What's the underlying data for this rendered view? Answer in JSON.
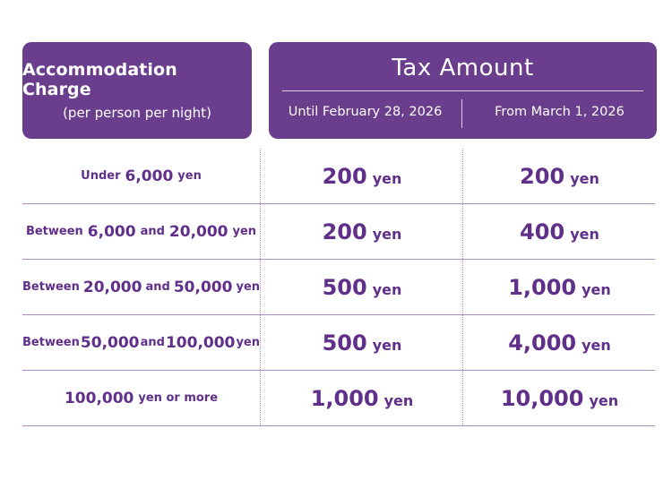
{
  "header": {
    "left_title": "Accommodation Charge",
    "left_subtitle": "(per person per night)",
    "right_title": "Tax Amount",
    "col1": "Until February 28, 2026",
    "col2": "From March 1, 2026"
  },
  "rows": [
    {
      "charge": {
        "pre": "Under",
        "a": "6,000",
        "mid": "",
        "b": "",
        "post": "yen"
      },
      "tax_until": "200",
      "tax_from": "200"
    },
    {
      "charge": {
        "pre": "Between",
        "a": "6,000",
        "mid": "and",
        "b": "20,000",
        "post": "yen"
      },
      "tax_until": "200",
      "tax_from": "400"
    },
    {
      "charge": {
        "pre": "Between",
        "a": "20,000",
        "mid": "and",
        "b": "50,000",
        "post": "yen"
      },
      "tax_until": "500",
      "tax_from": "1,000"
    },
    {
      "charge": {
        "pre": "Between",
        "a": "50,000",
        "mid": "and",
        "b": "100,000",
        "post": "yen"
      },
      "tax_until": "500",
      "tax_from": "4,000"
    },
    {
      "charge": {
        "pre": "",
        "a": "100,000",
        "mid": "",
        "b": "",
        "post": "yen or more"
      },
      "tax_until": "1,000",
      "tax_from": "10,000"
    }
  ],
  "unit": "yen"
}
